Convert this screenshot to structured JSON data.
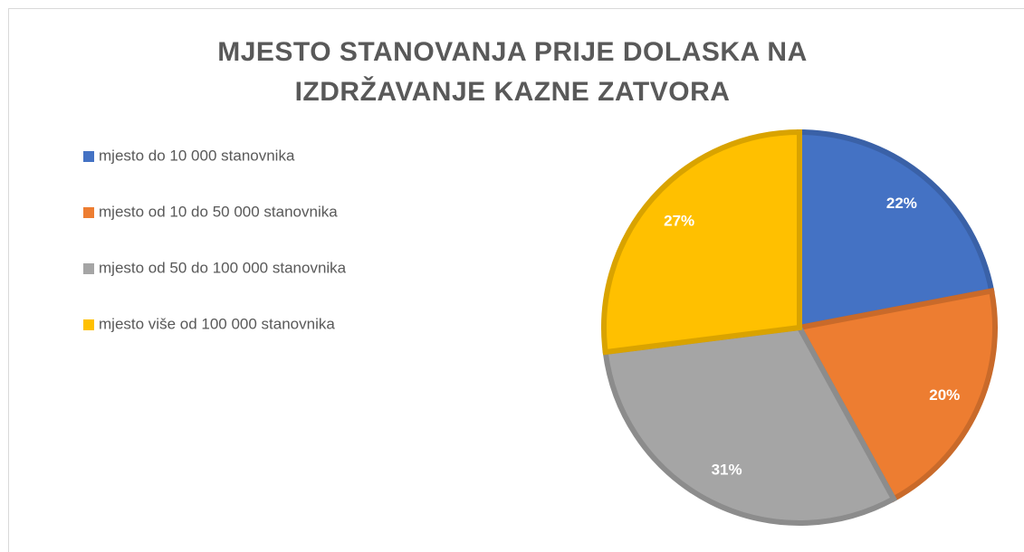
{
  "chart_data": {
    "type": "pie",
    "title": "MJESTO STANOVANJA PRIJE DOLASKA NA IZDRŽAVANJE KAZNE ZATVORA",
    "categories": [
      "mjesto do 10 000 stanovnika",
      "mjesto od 10 do 50 000 stanovnika",
      "mjesto od 50 do 100 000 stanovnika",
      "mjesto više od 100 000 stanovnika"
    ],
    "values": [
      22,
      20,
      31,
      27
    ],
    "value_labels": [
      "22%",
      "20%",
      "31%",
      "27%"
    ],
    "colors": [
      "#4472c4",
      "#ed7d31",
      "#a5a5a5",
      "#ffc000"
    ],
    "legend": "left"
  }
}
